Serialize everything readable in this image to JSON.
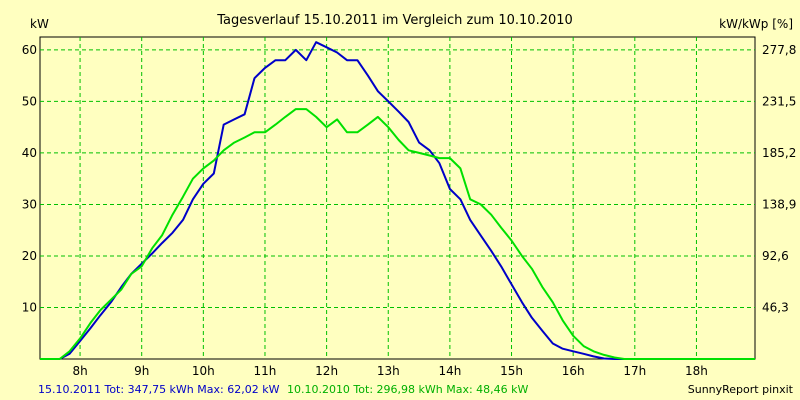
{
  "chart_data": {
    "type": "line",
    "title": "Tagesverlauf 15.10.2011 im Vergleich zum 10.10.2010",
    "ylabel": "kW",
    "y2label": "kW/kWp [%]",
    "x_tick_labels": [
      "8h",
      "9h",
      "10h",
      "11h",
      "12h",
      "13h",
      "14h",
      "15h",
      "16h",
      "17h",
      "18h"
    ],
    "x_ticks": [
      8,
      9,
      10,
      11,
      12,
      13,
      14,
      15,
      16,
      17,
      18
    ],
    "xlim": [
      7.35,
      18.95
    ],
    "y_ticks": [
      10,
      20,
      30,
      40,
      50,
      60
    ],
    "ylim": [
      0,
      62.5
    ],
    "y2_ticks": [
      {
        "value": 46.3,
        "label": "46,3"
      },
      {
        "value": 92.6,
        "label": "92,6"
      },
      {
        "value": 138.9,
        "label": "138,9"
      },
      {
        "value": 185.2,
        "label": "185,2"
      },
      {
        "value": 231.5,
        "label": "231,5"
      },
      {
        "value": 277.8,
        "label": "277,8"
      }
    ],
    "y2lim": [
      0,
      289.4
    ],
    "grid": true,
    "series": [
      {
        "name": "15.10.2011 Tot: 347,75 kWh Max: 62,02 kW",
        "color": "#0000c8",
        "x": [
          7.35,
          7.67,
          7.83,
          8.0,
          8.17,
          8.33,
          8.5,
          8.67,
          8.83,
          9.0,
          9.17,
          9.33,
          9.5,
          9.67,
          9.83,
          10.0,
          10.17,
          10.33,
          10.5,
          10.67,
          10.83,
          11.0,
          11.17,
          11.33,
          11.5,
          11.67,
          11.83,
          12.0,
          12.17,
          12.33,
          12.5,
          12.67,
          12.83,
          13.0,
          13.17,
          13.33,
          13.5,
          13.67,
          13.83,
          14.0,
          14.17,
          14.33,
          14.5,
          14.67,
          14.83,
          15.0,
          15.17,
          15.33,
          15.5,
          15.67,
          15.83,
          16.0,
          16.17,
          16.33,
          16.5,
          16.67,
          16.83,
          17.0,
          17.17,
          17.33,
          17.5,
          17.67,
          17.83,
          18.0,
          18.17,
          18.33,
          18.5,
          18.67,
          18.95
        ],
        "y": [
          0,
          0,
          1,
          3.5,
          6,
          8.5,
          11,
          14,
          16.5,
          18.5,
          20.5,
          22.5,
          24.5,
          27,
          31,
          34,
          36,
          45.5,
          46.5,
          47.5,
          54.5,
          56.5,
          58,
          58,
          60,
          58,
          61.5,
          60.5,
          59.5,
          58,
          58,
          55,
          52,
          50,
          48,
          46,
          42,
          40.5,
          38,
          33,
          31,
          27,
          24,
          21,
          18,
          14.5,
          11,
          8,
          5.5,
          3,
          2,
          1.5,
          1,
          0.5,
          0.1,
          0,
          0,
          0,
          0,
          0,
          0,
          0,
          0,
          0,
          0,
          0,
          0,
          0,
          0
        ]
      },
      {
        "name": "10.10.2010 Tot: 296,98 kWh Max: 48,46 kW",
        "color": "#00e000",
        "x": [
          7.35,
          7.67,
          7.83,
          8.0,
          8.17,
          8.33,
          8.5,
          8.67,
          8.83,
          9.0,
          9.17,
          9.33,
          9.5,
          9.67,
          9.83,
          10.0,
          10.17,
          10.33,
          10.5,
          10.67,
          10.83,
          11.0,
          11.17,
          11.33,
          11.5,
          11.67,
          11.83,
          12.0,
          12.17,
          12.33,
          12.5,
          12.67,
          12.83,
          13.0,
          13.17,
          13.33,
          13.5,
          13.67,
          13.83,
          14.0,
          14.17,
          14.33,
          14.5,
          14.67,
          14.83,
          15.0,
          15.17,
          15.33,
          15.5,
          15.67,
          15.83,
          16.0,
          16.17,
          16.33,
          16.5,
          16.67,
          16.83,
          17.0,
          17.17,
          17.33,
          17.5,
          17.67,
          17.83,
          18.0,
          18.17,
          18.33,
          18.5,
          18.67,
          18.95
        ],
        "y": [
          0,
          0,
          1.5,
          4,
          7,
          9.5,
          11.5,
          13.5,
          16.5,
          18,
          21.5,
          24,
          28,
          31.5,
          35,
          37,
          38.5,
          40.5,
          42,
          43,
          44,
          44,
          45.5,
          47,
          48.5,
          48.5,
          47,
          45,
          46.5,
          44,
          44,
          45.5,
          47,
          45,
          42.5,
          40.5,
          40,
          39.5,
          39,
          39,
          37,
          31,
          30,
          28,
          25.5,
          23,
          20,
          17.5,
          14,
          11,
          7.5,
          4.5,
          2.5,
          1.5,
          0.8,
          0.3,
          0,
          0,
          0,
          0,
          0,
          0,
          0,
          0,
          0,
          0,
          0,
          0,
          0
        ]
      }
    ]
  },
  "footer": {
    "series1_text": "15.10.2011 Tot: 347,75 kWh Max: 62,02 kW",
    "series2_text": "10.10.2010 Tot: 296,98 kWh Max: 48,46 kW",
    "credit": "SunnyReport pinxit"
  }
}
